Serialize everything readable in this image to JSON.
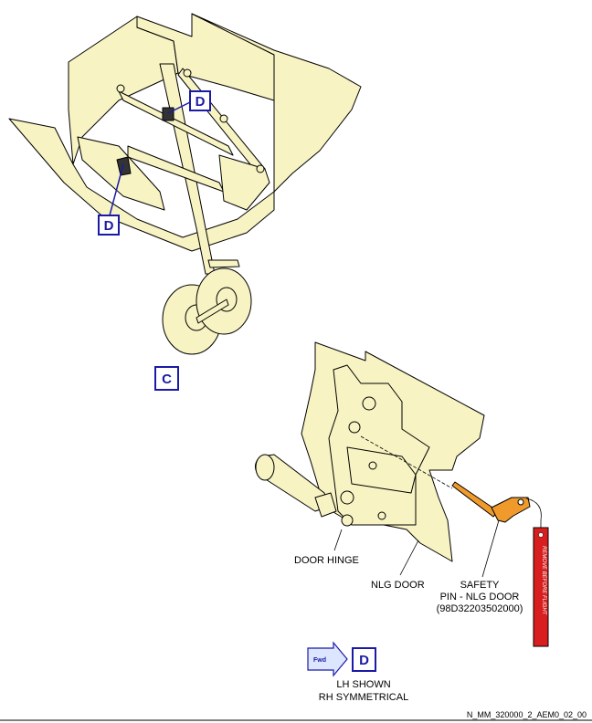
{
  "view_c": {
    "callout_letter": "C",
    "detail_refs": [
      "D",
      "D"
    ]
  },
  "view_d": {
    "callout_letter": "D",
    "fwd_label": "Fwd",
    "labels": {
      "door_hinge": "DOOR HINGE",
      "nlg_door": "NLG DOOR",
      "safety_pin_line1": "SAFETY",
      "safety_pin_line2": "PIN - NLG DOOR",
      "safety_pin_line3": "(98D32203502000)",
      "tag_text": "REMOVE BEFORE FLIGHT",
      "lh_shown": "LH SHOWN",
      "rh_symmetrical": "RH SYMMETRICAL"
    }
  },
  "footer": {
    "figure_ref": "N_MM_320000_2_AEM0_02_00"
  },
  "colors": {
    "structure_fill": "#f7f3c3",
    "line": "#000000",
    "callout_box": "#1a1aa6",
    "safety_pin": "#f09a2b",
    "tag_red": "#d81e1e"
  }
}
